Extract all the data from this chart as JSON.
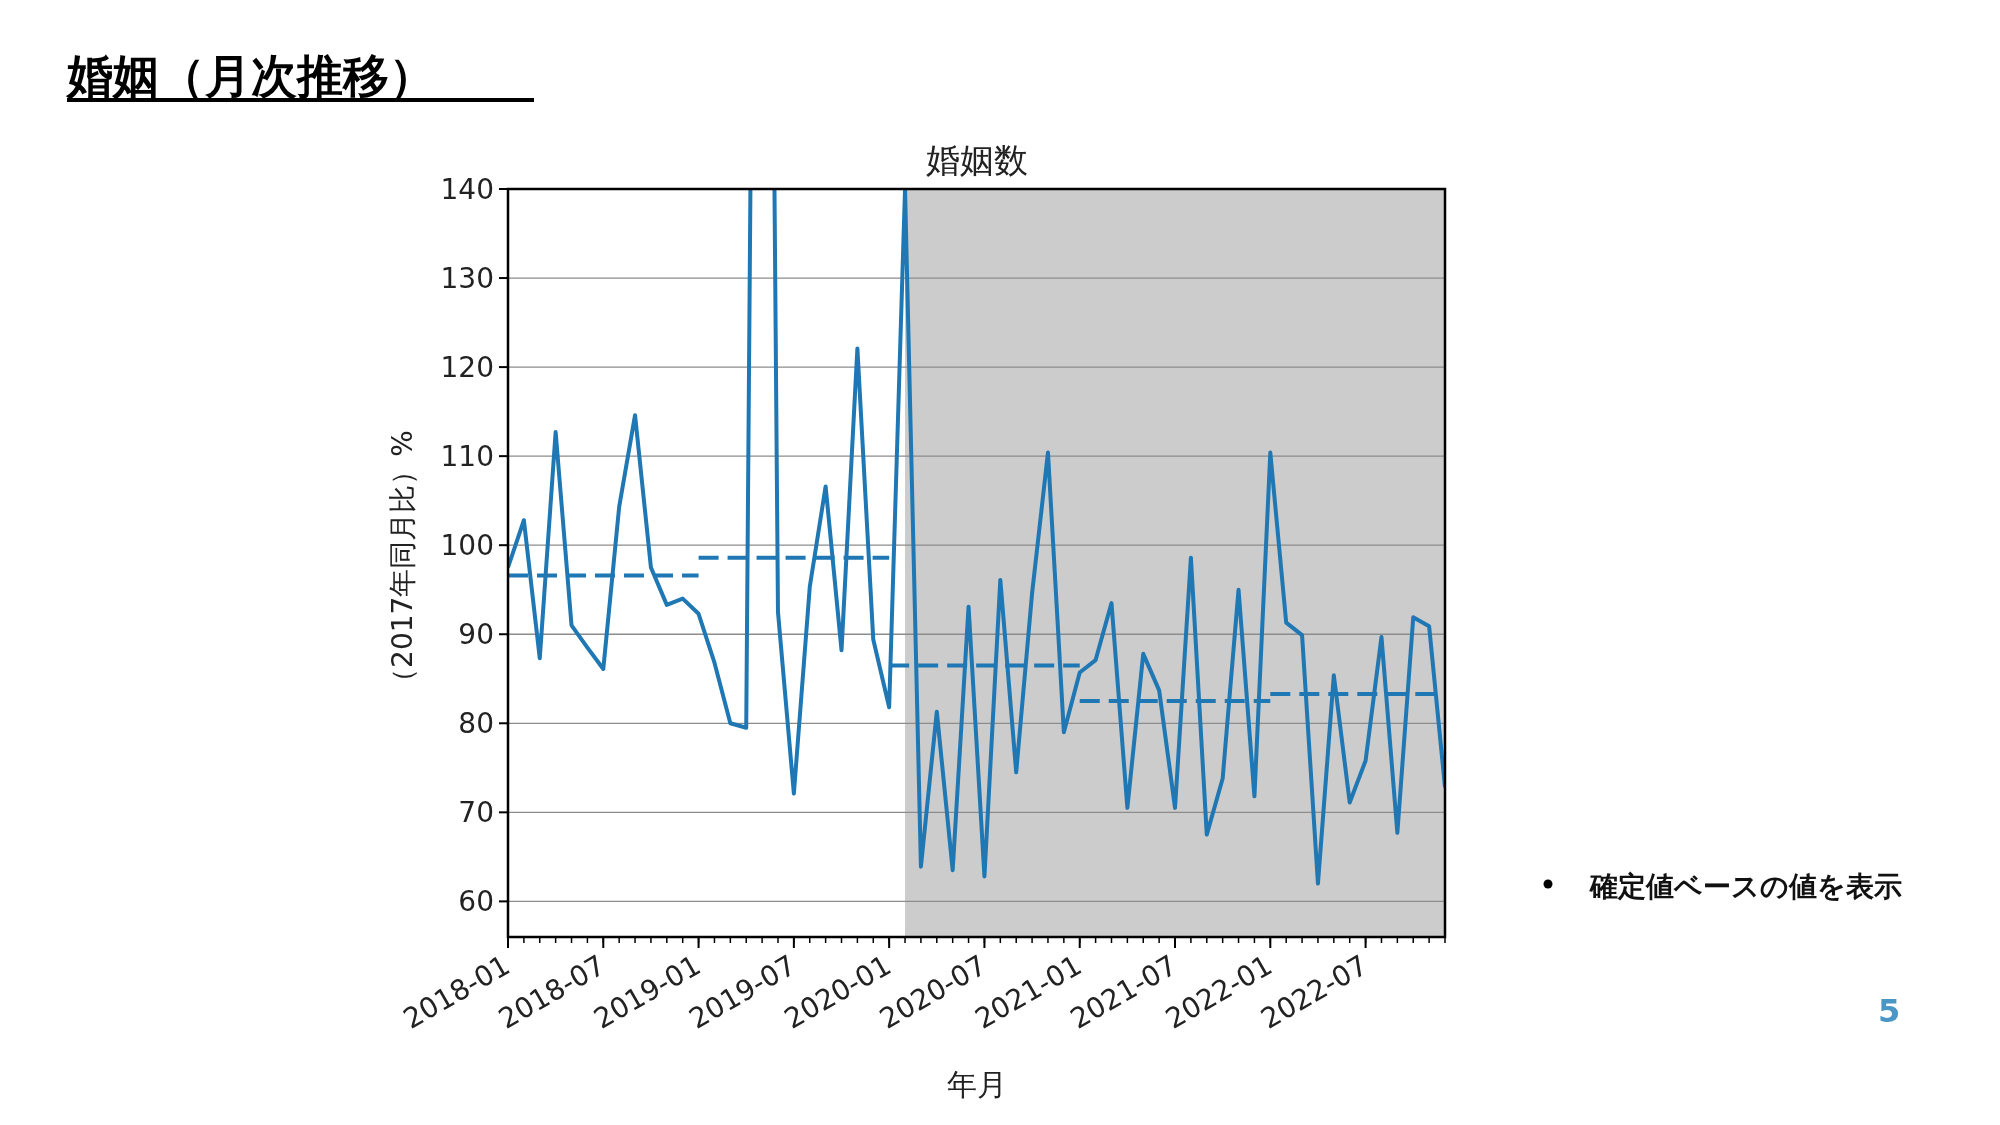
{
  "chart_data": {
    "type": "line",
    "title": "婚姻（月次推移）",
    "subtitle": "婚姻数",
    "xlabel": "年月",
    "ylabel": "（2017年同月比）%",
    "annotations": [
      "確定値ベースの値を表示",
      "5"
    ],
    "x": [
      "2018-01",
      "2018-02",
      "2018-03",
      "2018-04",
      "2018-05",
      "2018-06",
      "2018-07",
      "2018-08",
      "2018-09",
      "2018-10",
      "2018-11",
      "2018-12",
      "2019-01",
      "2019-02",
      "2019-03",
      "2019-04",
      "2019-05",
      "2019-06",
      "2019-07",
      "2019-08",
      "2019-09",
      "2019-10",
      "2019-11",
      "2019-12",
      "2020-01",
      "2020-02",
      "2020-03",
      "2020-04",
      "2020-05",
      "2020-06",
      "2020-07",
      "2020-08",
      "2020-09",
      "2020-10",
      "2020-11",
      "2020-12",
      "2021-01",
      "2021-02",
      "2021-03",
      "2021-04",
      "2021-05",
      "2021-06",
      "2021-07",
      "2021-08",
      "2021-09",
      "2021-10",
      "2021-11",
      "2021-12",
      "2022-01",
      "2022-02",
      "2022-03",
      "2022-04",
      "2022-05",
      "2022-06",
      "2022-07",
      "2022-08",
      "2022-09",
      "2022-10",
      "2022-11",
      "2022-12"
    ],
    "series": [
      {
        "color": "#1f77b4",
        "line_style": "solid",
        "values": [
          97.5,
          102.8,
          87.3,
          112.7,
          91.0,
          88.5,
          86.1,
          104.3,
          114.6,
          97.5,
          93.3,
          94.0,
          92.3,
          86.8,
          80.0,
          79.5,
          null,
          92.5,
          72.1,
          95.3,
          106.6,
          88.2,
          122.1,
          89.4,
          81.8,
          140,
          63.9,
          81.3,
          63.5,
          93.1,
          62.8,
          96.1,
          74.5,
          94.6,
          110.4,
          79.0,
          85.7,
          87.1,
          93.5,
          70.5,
          87.8,
          83.7,
          70.5,
          98.6,
          67.5,
          73.8,
          95.0,
          71.8,
          110.4,
          91.3,
          89.9,
          62.0,
          85.4,
          71.1,
          75.8,
          89.7,
          67.7,
          91.9,
          90.9,
          72.8
        ]
      },
      {
        "color": "#1f77b4",
        "line_style": "dashed",
        "x": [
          "2018-01",
          "2019-01"
        ],
        "values": [
          96.6,
          96.6
        ]
      },
      {
        "color": "#1f77b4",
        "line_style": "dashed",
        "x": [
          "2019-01",
          "2020-01"
        ],
        "values": [
          98.6,
          98.6
        ]
      },
      {
        "color": "#1f77b4",
        "line_style": "dashed",
        "x": [
          "2020-01",
          "2021-01"
        ],
        "values": [
          86.5,
          86.5
        ]
      },
      {
        "color": "#1f77b4",
        "line_style": "dashed",
        "x": [
          "2021-01",
          "2022-01"
        ],
        "values": [
          82.5,
          82.5
        ]
      },
      {
        "color": "#1f77b4",
        "line_style": "dashed",
        "x": [
          "2022-01",
          "2022-12"
        ],
        "values": [
          83.3,
          83.3
        ]
      }
    ],
    "bands": [
      {
        "axis": "x",
        "from": "2020-02",
        "to": "2022-12",
        "color": "#cccccc"
      }
    ],
    "xlim": [
      "2018-01",
      "2022-12"
    ],
    "xticks": [
      "2018-01",
      "2018-07",
      "2019-01",
      "2019-07",
      "2020-01",
      "2020-07",
      "2021-01",
      "2021-07",
      "2022-01",
      "2022-07"
    ],
    "ylim": [
      56,
      140
    ],
    "yticks": [
      60,
      70,
      80,
      90,
      100,
      110,
      120,
      130,
      140
    ],
    "grid": "y"
  }
}
